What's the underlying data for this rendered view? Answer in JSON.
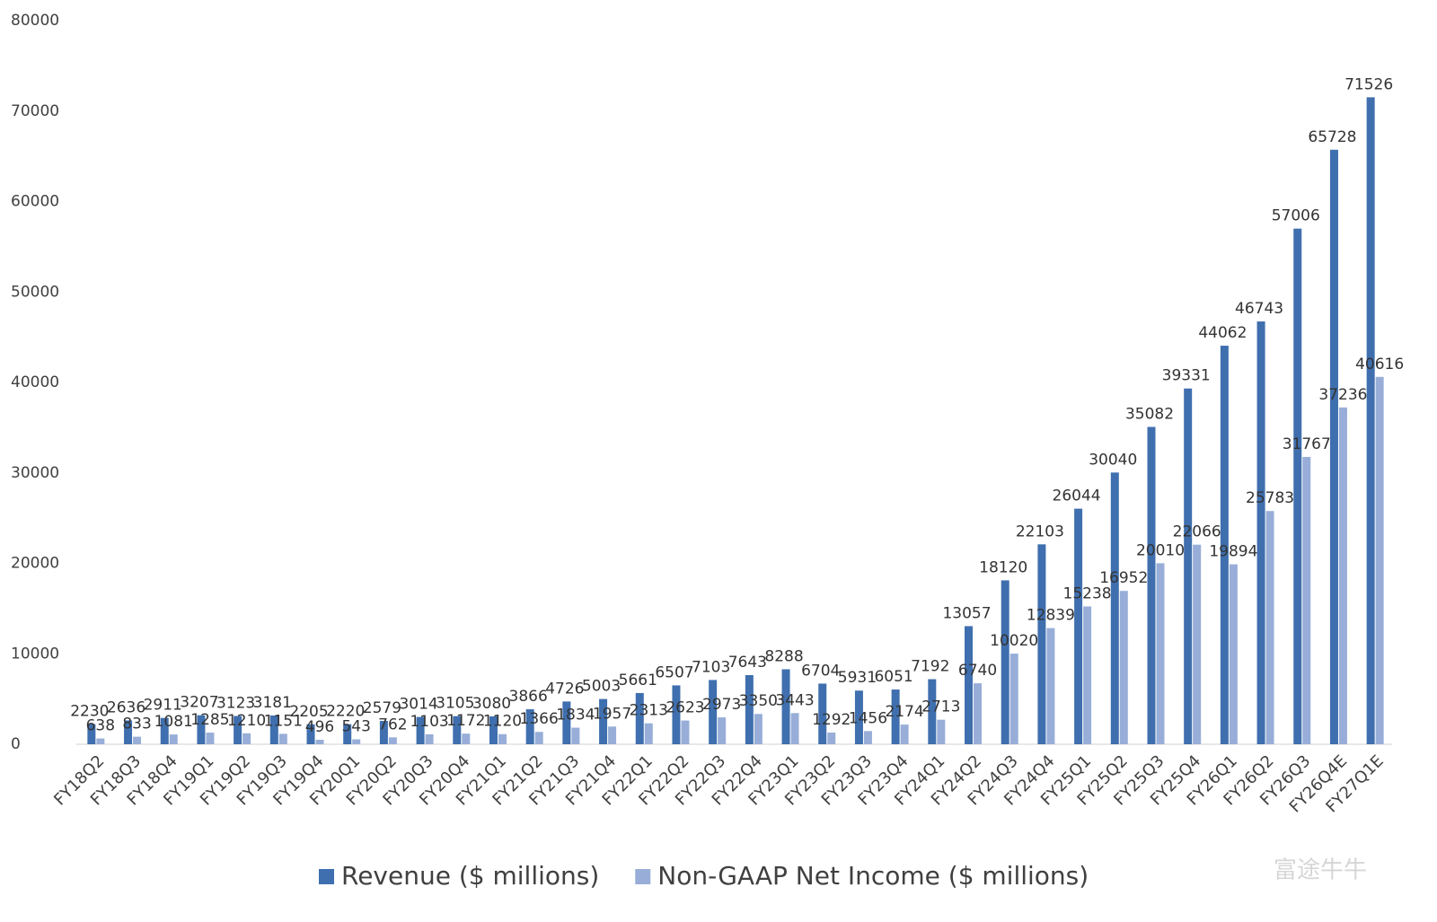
{
  "chart_data": {
    "type": "bar",
    "categories": [
      "FY18Q2",
      "FY18Q3",
      "FY18Q4",
      "FY19Q1",
      "FY19Q2",
      "FY19Q3",
      "FY19Q4",
      "FY20Q1",
      "FY20Q2",
      "FY20Q3",
      "FY20Q4",
      "FY21Q1",
      "FY21Q2",
      "FY21Q3",
      "FY21Q4",
      "FY22Q1",
      "FY22Q2",
      "FY22Q3",
      "FY22Q4",
      "FY23Q1",
      "FY23Q2",
      "FY23Q3",
      "FY23Q4",
      "FY24Q1",
      "FY24Q2",
      "FY24Q3",
      "FY24Q4",
      "FY25Q1",
      "FY25Q2",
      "FY25Q3",
      "FY25Q4",
      "FY26Q1",
      "FY26Q2",
      "FY26Q3",
      "FY26Q4E",
      "FY27Q1E"
    ],
    "series": [
      {
        "name": "Revenue ($ millions)",
        "color": "#3f6fae",
        "values": [
          2230,
          2636,
          2911,
          3207,
          3123,
          3181,
          2205,
          2220,
          2579,
          3014,
          3105,
          3080,
          3866,
          4726,
          5003,
          5661,
          6507,
          7103,
          7643,
          8288,
          6704,
          5931,
          6051,
          7192,
          13057,
          18120,
          22103,
          26044,
          30040,
          35082,
          39331,
          44062,
          46743,
          57006,
          65728,
          71526
        ]
      },
      {
        "name": "Non-GAAP Net Income ($ millions)",
        "color": "#98aed8",
        "values": [
          638,
          833,
          1081,
          1285,
          1210,
          1151,
          496,
          543,
          762,
          1103,
          1172,
          1120,
          1366,
          1834,
          1957,
          2313,
          2623,
          2973,
          3350,
          3443,
          1292,
          1456,
          2174,
          2713,
          6740,
          10020,
          12839,
          15238,
          16952,
          20010,
          22066,
          19894,
          25783,
          31767,
          37236,
          40616
        ]
      }
    ],
    "ylim": [
      0,
      80000
    ],
    "yticks": [
      0,
      10000,
      20000,
      30000,
      40000,
      50000,
      60000,
      70000,
      80000
    ],
    "grid": false,
    "legend": "bottom",
    "watermark": "富途牛牛"
  }
}
